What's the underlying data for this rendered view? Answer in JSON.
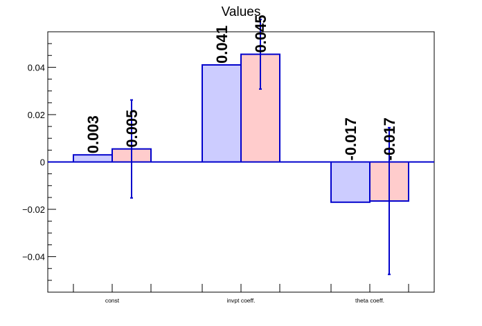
{
  "chart_data": {
    "type": "bar",
    "title": "Values",
    "categories": [
      "const",
      "invpt coeff.",
      "theta coeff."
    ],
    "series": [
      {
        "values": [
          0.003,
          0.041,
          -0.017
        ],
        "labels": [
          "0.003",
          "0.041",
          "-0.017"
        ],
        "errors": null,
        "fill": "#ccccff",
        "stroke": "#0000cc"
      },
      {
        "values": [
          0.0055,
          0.0455,
          -0.0165
        ],
        "labels": [
          "0.005",
          "0.045",
          "-0.017"
        ],
        "errors": [
          0.0207,
          0.0147,
          0.031
        ],
        "fill": "#ffcccc",
        "stroke": "#0000cc",
        "error_color": "#0000cc"
      }
    ],
    "ylim": [
      -0.055,
      0.055
    ],
    "yticks": [
      -0.04,
      -0.02,
      0,
      0.02,
      0.04
    ],
    "ytick_labels": [
      "−0.04",
      "−0.02",
      "0",
      "0.02",
      "0.04"
    ],
    "zero_line_color": "#0000cc",
    "xlabel": "",
    "ylabel": "",
    "grid": false,
    "legend": "none"
  }
}
